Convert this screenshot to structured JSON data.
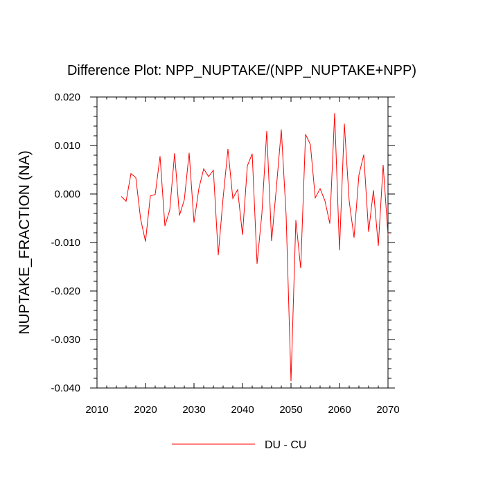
{
  "chart_data": {
    "type": "line",
    "title": "Difference Plot: NPP_NUPTAKE/(NPP_NUPTAKE+NPP)",
    "xlabel": "",
    "ylabel": "NUPTAKE_FRACTION  (NA)",
    "xlim": [
      2010,
      2070
    ],
    "ylim": [
      -0.04,
      0.02
    ],
    "xticks": [
      2010,
      2020,
      2030,
      2040,
      2050,
      2060,
      2070
    ],
    "xtick_labels": [
      "2010",
      "2020",
      "2030",
      "2040",
      "2050",
      "2060",
      "2070"
    ],
    "yticks": [
      0.02,
      0.01,
      0.0,
      -0.01,
      -0.02,
      -0.03,
      -0.04
    ],
    "ytick_labels": [
      "0.020",
      "0.010",
      "0.000",
      "-0.010",
      "-0.020",
      "-0.030",
      "-0.040"
    ],
    "legend_position": "bottom-center",
    "series": [
      {
        "name": "DU - CU",
        "color": "#ff0000",
        "x": [
          2015,
          2016,
          2017,
          2018,
          2019,
          2020,
          2021,
          2022,
          2023,
          2024,
          2025,
          2026,
          2027,
          2028,
          2029,
          2030,
          2031,
          2032,
          2033,
          2034,
          2035,
          2036,
          2037,
          2038,
          2039,
          2040,
          2041,
          2042,
          2043,
          2044,
          2045,
          2046,
          2047,
          2048,
          2049,
          2050,
          2051,
          2052,
          2053,
          2054,
          2055,
          2056,
          2057,
          2058,
          2059,
          2060,
          2061,
          2062,
          2063,
          2064,
          2065,
          2066,
          2067,
          2068,
          2069,
          2070
        ],
        "values": [
          -0.0005,
          -0.0015,
          0.0042,
          0.0034,
          -0.0052,
          -0.0098,
          -0.0004,
          -0.0001,
          0.0078,
          -0.0066,
          -0.0033,
          0.0084,
          -0.0044,
          -0.0012,
          0.0085,
          -0.0059,
          0.0011,
          0.0052,
          0.0036,
          0.0049,
          -0.0126,
          -0.0008,
          0.0093,
          -0.0009,
          0.0009,
          -0.0084,
          0.0058,
          0.0083,
          -0.0144,
          -0.004,
          0.013,
          -0.0097,
          0.0015,
          0.0133,
          -0.0045,
          -0.0386,
          -0.0054,
          -0.0153,
          0.0123,
          0.0102,
          -0.0008,
          0.0011,
          -0.0014,
          -0.0061,
          0.0167,
          -0.0116,
          0.0145,
          -0.0015,
          -0.009,
          0.0039,
          0.0081,
          -0.0078,
          0.0008,
          -0.0107,
          0.006,
          -0.0085
        ]
      }
    ]
  }
}
